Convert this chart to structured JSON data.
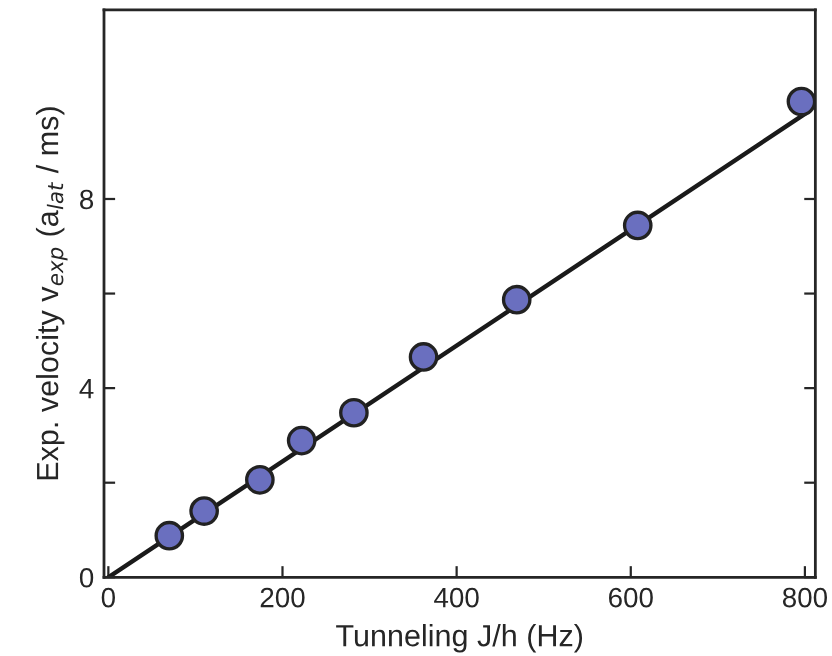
{
  "chart_data": {
    "type": "scatter",
    "xlabel": "Tunneling J/h (Hz)",
    "ylabel": "Exp. velocity v$_{exp}$ (a$_{lat}$ / ms)",
    "x": [
      70,
      110,
      174,
      222,
      282,
      362,
      469,
      608,
      796
    ],
    "series": [
      {
        "color": "#6a6fbf",
        "values": [
          0.88,
          1.4,
          2.06,
          2.89,
          3.48,
          4.66,
          5.87,
          7.44,
          10.06
        ],
        "marker": "circle"
      },
      {
        "type": "line",
        "color": "#1a1a1a",
        "x": [
          0,
          800
        ],
        "values": [
          0,
          9.8
        ],
        "marker": "none",
        "line_style": "solid"
      }
    ],
    "xlim": [
      -5,
      812
    ],
    "ylim": [
      0,
      12
    ],
    "xticks": [
      0,
      200,
      400,
      600,
      800
    ],
    "yticks": [
      0,
      {
        "value": 2,
        "label": null
      },
      4,
      {
        "value": 6,
        "label": null
      },
      8
    ],
    "grid": false,
    "legend": false
  }
}
